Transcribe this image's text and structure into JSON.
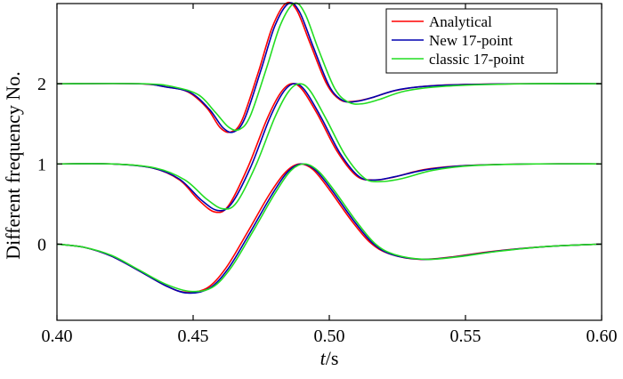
{
  "chart_data": {
    "type": "line",
    "xlabel_italic": "t",
    "xlabel_unit": "/s",
    "ylabel": "Different frequency No.",
    "xlim": [
      0.4,
      0.6
    ],
    "ylim": [
      -0.95,
      3.0
    ],
    "xticks": [
      0.4,
      0.45,
      0.5,
      0.55,
      0.6
    ],
    "xtick_labels": [
      "0.40",
      "0.45",
      "0.50",
      "0.55",
      "0.60"
    ],
    "yticks": [
      0,
      1,
      2
    ],
    "ytick_labels": [
      "0",
      "1",
      "2"
    ],
    "grid": false,
    "legend_position": "top-right",
    "series": [
      {
        "name": "Analytical",
        "color": "#ff0000",
        "offsets": [
          0,
          1,
          2
        ],
        "data": [
          [
            [
              0.4,
              0.0
            ],
            [
              0.41,
              -0.04
            ],
            [
              0.42,
              -0.15
            ],
            [
              0.43,
              -0.33
            ],
            [
              0.44,
              -0.52
            ],
            [
              0.447,
              -0.6
            ],
            [
              0.455,
              -0.55
            ],
            [
              0.462,
              -0.3
            ],
            [
              0.47,
              0.15
            ],
            [
              0.478,
              0.62
            ],
            [
              0.484,
              0.9
            ],
            [
              0.489,
              1.0
            ],
            [
              0.494,
              0.93
            ],
            [
              0.5,
              0.68
            ],
            [
              0.508,
              0.3
            ],
            [
              0.515,
              0.02
            ],
            [
              0.522,
              -0.12
            ],
            [
              0.533,
              -0.19
            ],
            [
              0.545,
              -0.16
            ],
            [
              0.56,
              -0.09
            ],
            [
              0.58,
              -0.03
            ],
            [
              0.6,
              0.0
            ]
          ],
          [
            [
              0.4,
              1.0
            ],
            [
              0.42,
              1.0
            ],
            [
              0.435,
              0.95
            ],
            [
              0.445,
              0.8
            ],
            [
              0.452,
              0.55
            ],
            [
              0.458,
              0.4
            ],
            [
              0.463,
              0.48
            ],
            [
              0.47,
              0.95
            ],
            [
              0.477,
              1.55
            ],
            [
              0.482,
              1.88
            ],
            [
              0.486,
              2.0
            ],
            [
              0.49,
              1.93
            ],
            [
              0.496,
              1.6
            ],
            [
              0.503,
              1.15
            ],
            [
              0.51,
              0.85
            ],
            [
              0.516,
              0.8
            ],
            [
              0.523,
              0.83
            ],
            [
              0.535,
              0.93
            ],
            [
              0.55,
              0.98
            ],
            [
              0.575,
              1.0
            ],
            [
              0.6,
              1.0
            ]
          ],
          [
            [
              0.4,
              2.0
            ],
            [
              0.43,
              2.0
            ],
            [
              0.44,
              1.96
            ],
            [
              0.448,
              1.9
            ],
            [
              0.455,
              1.7
            ],
            [
              0.46,
              1.45
            ],
            [
              0.464,
              1.4
            ],
            [
              0.468,
              1.55
            ],
            [
              0.474,
              2.15
            ],
            [
              0.479,
              2.7
            ],
            [
              0.484,
              3.0
            ],
            [
              0.488,
              2.92
            ],
            [
              0.493,
              2.5
            ],
            [
              0.499,
              2.0
            ],
            [
              0.504,
              1.8
            ],
            [
              0.509,
              1.78
            ],
            [
              0.515,
              1.82
            ],
            [
              0.525,
              1.92
            ],
            [
              0.54,
              1.98
            ],
            [
              0.57,
              2.0
            ],
            [
              0.6,
              2.0
            ]
          ]
        ]
      },
      {
        "name": "New 17-point",
        "color": "#0000b0",
        "offsets": [
          0,
          1,
          2
        ],
        "data": [
          [
            [
              0.4,
              0.0
            ],
            [
              0.41,
              -0.04
            ],
            [
              0.42,
              -0.15
            ],
            [
              0.43,
              -0.33
            ],
            [
              0.44,
              -0.52
            ],
            [
              0.448,
              -0.61
            ],
            [
              0.456,
              -0.55
            ],
            [
              0.463,
              -0.3
            ],
            [
              0.471,
              0.15
            ],
            [
              0.479,
              0.62
            ],
            [
              0.485,
              0.91
            ],
            [
              0.49,
              1.0
            ],
            [
              0.495,
              0.92
            ],
            [
              0.501,
              0.67
            ],
            [
              0.509,
              0.29
            ],
            [
              0.516,
              0.01
            ],
            [
              0.523,
              -0.13
            ],
            [
              0.534,
              -0.19
            ],
            [
              0.546,
              -0.16
            ],
            [
              0.561,
              -0.09
            ],
            [
              0.58,
              -0.03
            ],
            [
              0.6,
              0.0
            ]
          ],
          [
            [
              0.4,
              1.0
            ],
            [
              0.42,
              1.0
            ],
            [
              0.435,
              0.95
            ],
            [
              0.445,
              0.81
            ],
            [
              0.453,
              0.55
            ],
            [
              0.459,
              0.42
            ],
            [
              0.464,
              0.5
            ],
            [
              0.471,
              0.95
            ],
            [
              0.478,
              1.56
            ],
            [
              0.483,
              1.89
            ],
            [
              0.487,
              2.0
            ],
            [
              0.491,
              1.92
            ],
            [
              0.497,
              1.58
            ],
            [
              0.504,
              1.13
            ],
            [
              0.511,
              0.84
            ],
            [
              0.517,
              0.8
            ],
            [
              0.524,
              0.84
            ],
            [
              0.536,
              0.93
            ],
            [
              0.551,
              0.98
            ],
            [
              0.575,
              1.0
            ],
            [
              0.6,
              1.0
            ]
          ],
          [
            [
              0.4,
              2.0
            ],
            [
              0.43,
              2.0
            ],
            [
              0.44,
              1.96
            ],
            [
              0.449,
              1.89
            ],
            [
              0.456,
              1.68
            ],
            [
              0.461,
              1.45
            ],
            [
              0.465,
              1.4
            ],
            [
              0.469,
              1.57
            ],
            [
              0.475,
              2.18
            ],
            [
              0.48,
              2.72
            ],
            [
              0.485,
              3.0
            ],
            [
              0.489,
              2.9
            ],
            [
              0.494,
              2.47
            ],
            [
              0.5,
              1.97
            ],
            [
              0.505,
              1.79
            ],
            [
              0.51,
              1.78
            ],
            [
              0.516,
              1.83
            ],
            [
              0.526,
              1.93
            ],
            [
              0.541,
              1.98
            ],
            [
              0.57,
              2.0
            ],
            [
              0.6,
              2.0
            ]
          ]
        ]
      },
      {
        "name": "classic 17-point",
        "color": "#22dd22",
        "offsets": [
          0,
          1,
          2
        ],
        "data": [
          [
            [
              0.4,
              0.0
            ],
            [
              0.41,
              -0.04
            ],
            [
              0.42,
              -0.14
            ],
            [
              0.43,
              -0.32
            ],
            [
              0.44,
              -0.5
            ],
            [
              0.449,
              -0.59
            ],
            [
              0.457,
              -0.54
            ],
            [
              0.464,
              -0.29
            ],
            [
              0.472,
              0.16
            ],
            [
              0.48,
              0.63
            ],
            [
              0.486,
              0.92
            ],
            [
              0.491,
              1.0
            ],
            [
              0.496,
              0.91
            ],
            [
              0.502,
              0.66
            ],
            [
              0.51,
              0.28
            ],
            [
              0.517,
              0.0
            ],
            [
              0.524,
              -0.13
            ],
            [
              0.535,
              -0.19
            ],
            [
              0.547,
              -0.16
            ],
            [
              0.562,
              -0.09
            ],
            [
              0.58,
              -0.03
            ],
            [
              0.6,
              0.0
            ]
          ],
          [
            [
              0.4,
              1.0
            ],
            [
              0.42,
              1.0
            ],
            [
              0.436,
              0.95
            ],
            [
              0.447,
              0.8
            ],
            [
              0.455,
              0.56
            ],
            [
              0.461,
              0.44
            ],
            [
              0.466,
              0.52
            ],
            [
              0.473,
              0.98
            ],
            [
              0.48,
              1.58
            ],
            [
              0.485,
              1.9
            ],
            [
              0.489,
              2.0
            ],
            [
              0.493,
              1.91
            ],
            [
              0.499,
              1.55
            ],
            [
              0.506,
              1.1
            ],
            [
              0.513,
              0.82
            ],
            [
              0.519,
              0.78
            ],
            [
              0.527,
              0.82
            ],
            [
              0.538,
              0.92
            ],
            [
              0.553,
              0.98
            ],
            [
              0.576,
              1.0
            ],
            [
              0.6,
              1.0
            ]
          ],
          [
            [
              0.4,
              2.0
            ],
            [
              0.432,
              2.0
            ],
            [
              0.443,
              1.96
            ],
            [
              0.452,
              1.86
            ],
            [
              0.458,
              1.65
            ],
            [
              0.463,
              1.46
            ],
            [
              0.467,
              1.43
            ],
            [
              0.471,
              1.6
            ],
            [
              0.477,
              2.2
            ],
            [
              0.482,
              2.73
            ],
            [
              0.487,
              3.0
            ],
            [
              0.491,
              2.88
            ],
            [
              0.496,
              2.43
            ],
            [
              0.502,
              1.94
            ],
            [
              0.507,
              1.77
            ],
            [
              0.512,
              1.75
            ],
            [
              0.518,
              1.8
            ],
            [
              0.528,
              1.91
            ],
            [
              0.543,
              1.97
            ],
            [
              0.572,
              2.0
            ],
            [
              0.6,
              2.0
            ]
          ]
        ]
      }
    ]
  }
}
